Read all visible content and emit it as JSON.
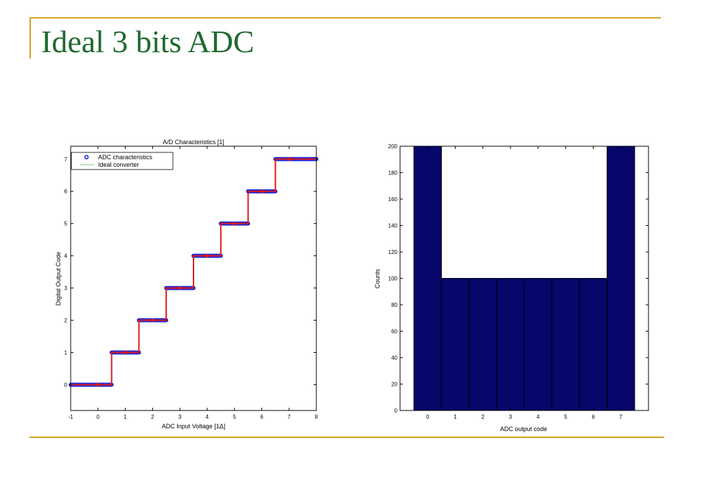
{
  "slide": {
    "title": "Ideal 3 bits ADC"
  },
  "colors": {
    "accent_rule": "#d7a11e",
    "title": "#1f6a2e",
    "adc_points": "#1f2ad8",
    "ideal_line": "#e01616",
    "bars": "#06066b"
  },
  "chart_data": [
    {
      "type": "line",
      "title": "A/D Characteristics [1]",
      "xlabel": "ADC Input Voltage  [1Δ]",
      "ylabel": "Digital Output Code",
      "xlim": [
        -1,
        8
      ],
      "ylim": [
        -0.8,
        7.4
      ],
      "xticks": [
        "-1",
        "0",
        "1",
        "2",
        "3",
        "4",
        "5",
        "6",
        "7",
        "8"
      ],
      "yticks": [
        "0",
        "1",
        "2",
        "3",
        "4",
        "5",
        "6",
        "7"
      ],
      "legend_position": "top-left",
      "series": [
        {
          "name": "ADC characteristics",
          "style": "markers",
          "x": [
            -1,
            0.5,
            0.5,
            1.5,
            1.5,
            2.5,
            2.5,
            3.5,
            3.5,
            4.5,
            4.5,
            5.5,
            5.5,
            6.5,
            6.5,
            8
          ],
          "y": [
            0,
            0,
            1,
            1,
            2,
            2,
            3,
            3,
            4,
            4,
            5,
            5,
            6,
            6,
            7,
            7
          ]
        },
        {
          "name": "Ideal converter",
          "style": "step",
          "x": [
            -1,
            0.5,
            0.5,
            1.5,
            1.5,
            2.5,
            2.5,
            3.5,
            3.5,
            4.5,
            4.5,
            5.5,
            5.5,
            6.5,
            6.5,
            8
          ],
          "y": [
            0,
            0,
            1,
            1,
            2,
            2,
            3,
            3,
            4,
            4,
            5,
            5,
            6,
            6,
            7,
            7
          ]
        }
      ],
      "center_markers": {
        "x": [
          0,
          1,
          2,
          3,
          4,
          5,
          6,
          7
        ],
        "y": [
          0,
          1,
          2,
          3,
          4,
          5,
          6,
          7
        ]
      }
    },
    {
      "type": "bar",
      "title": "",
      "xlabel": "ADC output code",
      "ylabel": "Counts",
      "categories": [
        "0",
        "1",
        "2",
        "3",
        "4",
        "5",
        "6",
        "7"
      ],
      "values": [
        200,
        100,
        100,
        100,
        100,
        100,
        100,
        200
      ],
      "xlim": [
        -1,
        8
      ],
      "ylim": [
        0,
        200
      ],
      "yticks": [
        "0",
        "20",
        "40",
        "60",
        "80",
        "100",
        "120",
        "140",
        "160",
        "180",
        "200"
      ]
    }
  ]
}
